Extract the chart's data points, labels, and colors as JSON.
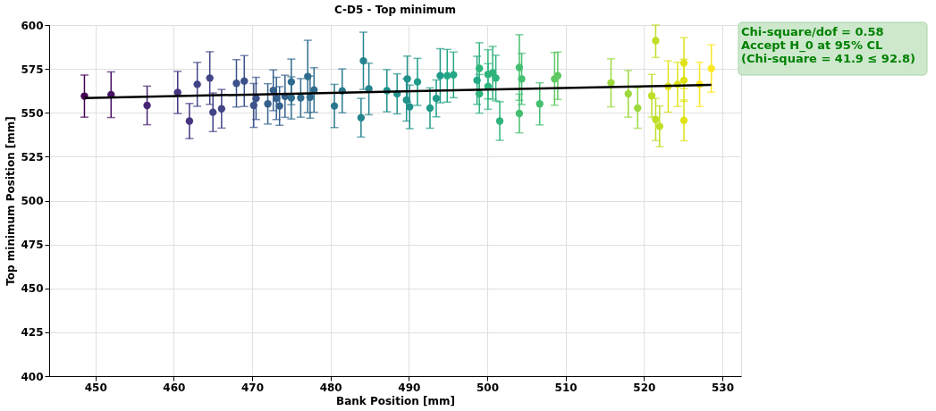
{
  "chart_data": {
    "type": "scatter",
    "title": "C-D5 - Top minimum",
    "xlabel": "Bank Position [mm]",
    "ylabel": "Top minimum Position [mm]",
    "xlim": [
      444.1,
      532.4
    ],
    "ylim": [
      400,
      600
    ],
    "xticks": [
      450,
      460,
      470,
      480,
      490,
      500,
      510,
      520,
      530
    ],
    "yticks": [
      400,
      425,
      450,
      475,
      500,
      525,
      550,
      575,
      600
    ],
    "grid": true,
    "annotations": [
      "Chi-square/dof = 0.58",
      "Accept H_0 at 95% CL",
      " (Chi-square = 41.9 ≤ 92.8)"
    ],
    "series": [
      {
        "marker": "circle",
        "x": [
          448.6,
          452.0,
          456.6,
          460.5,
          462.0,
          463.0,
          464.6,
          465.0,
          466.1,
          468.0,
          469.0,
          470.2,
          470.5,
          472.0,
          472.7,
          473.1,
          473.5,
          474.2,
          475.0,
          475.0,
          476.2,
          477.1,
          477.4,
          477.9,
          480.5,
          481.5,
          483.9,
          484.2,
          484.9,
          487.2,
          488.5,
          489.7,
          489.8,
          490.1,
          491.1,
          492.7,
          493.5,
          494.0,
          494.9,
          495.7,
          498.7,
          499.0,
          499.0,
          500.1,
          500.1,
          500.7,
          501.1,
          501.6,
          504.1,
          504.1,
          504.4,
          506.7,
          508.6,
          509.0,
          515.8,
          518.0,
          519.2,
          521.0,
          521.5,
          521.5,
          522.0,
          523.1,
          524.3,
          525.1,
          525.1,
          525.1,
          527.1,
          528.6
        ],
        "values": [
          559.5,
          560.3,
          554.2,
          561.6,
          545.3,
          566.2,
          569.8,
          550.3,
          552.3,
          566.8,
          568.1,
          554.2,
          558.2,
          555.1,
          562.8,
          558.2,
          553.9,
          559.4,
          558.5,
          567.6,
          558.5,
          570.7,
          558.9,
          563.0,
          553.9,
          562.5,
          547.2,
          579.6,
          563.6,
          562.6,
          560.8,
          557.3,
          569.3,
          553.4,
          567.6,
          552.7,
          558.2,
          571.1,
          571.1,
          571.6,
          568.5,
          575.3,
          560.8,
          565.0,
          571.9,
          572.8,
          569.8,
          545.3,
          575.8,
          549.6,
          569.3,
          555.1,
          569.3,
          571.1,
          567.1,
          560.8,
          552.7,
          559.7,
          591.1,
          546.2,
          542.3,
          565.0,
          566.2,
          578.3,
          568.5,
          545.7,
          566.2,
          575.2
        ],
        "errors": [
          12,
          13,
          11,
          12,
          10,
          12.5,
          15,
          11,
          11,
          13.5,
          14.5,
          12.5,
          12,
          11.5,
          11.6,
          12,
          11,
          12,
          12,
          13,
          11,
          20.6,
          12,
          12.7,
          12.3,
          12.5,
          11,
          16.3,
          14.7,
          12,
          11.4,
          12,
          13,
          12.4,
          13.4,
          11.5,
          10.5,
          15.4,
          15,
          13,
          13.7,
          14.6,
          11,
          13,
          14,
          15,
          13,
          11,
          18.7,
          11,
          14.6,
          12,
          15,
          13.5,
          13.7,
          13.3,
          11.5,
          12.2,
          [
            581.5,
            600
          ],
          12,
          11.6,
          14.6,
          12.6,
          14.5,
          12,
          11.6,
          12.6,
          13.5
        ],
        "colors": [
          "#440154",
          "#471365",
          "#482475",
          "#463480",
          "#463480",
          "#414487",
          "#414487",
          "#414487",
          "#414487",
          "#3b528b",
          "#3b528b",
          "#3b528b",
          "#3b528b",
          "#355f8d",
          "#355f8d",
          "#355f8d",
          "#355f8d",
          "#355f8d",
          "#2f6c8e",
          "#2f6c8e",
          "#2f6c8e",
          "#2f6c8e",
          "#2f6c8e",
          "#2f6c8e",
          "#2a788e",
          "#2a788e",
          "#25848e",
          "#25848e",
          "#25848e",
          "#21918c",
          "#21918c",
          "#21918c",
          "#21918c",
          "#21918c",
          "#1e9c89",
          "#1e9c89",
          "#1e9c89",
          "#1e9c89",
          "#22a884",
          "#22a884",
          "#22a884",
          "#2fb47c",
          "#2fb47c",
          "#2fb47c",
          "#2fb47c",
          "#2fb47c",
          "#2fb47c",
          "#2fb47c",
          "#44bf70",
          "#44bf70",
          "#44bf70",
          "#44bf70",
          "#5ec962",
          "#5ec962",
          "#9bd93c",
          "#9bd93c",
          "#9bd93c",
          "#bddf26",
          "#bddf26",
          "#bddf26",
          "#bddf26",
          "#dfe318",
          "#dfe318",
          "#dfe318",
          "#dfe318",
          "#dfe318",
          "#fde725",
          "#fde725"
        ]
      },
      {
        "type": "line",
        "color": "#000000",
        "x": [
          448.6,
          528.6
        ],
        "values": [
          558.4,
          565.9
        ]
      }
    ]
  }
}
